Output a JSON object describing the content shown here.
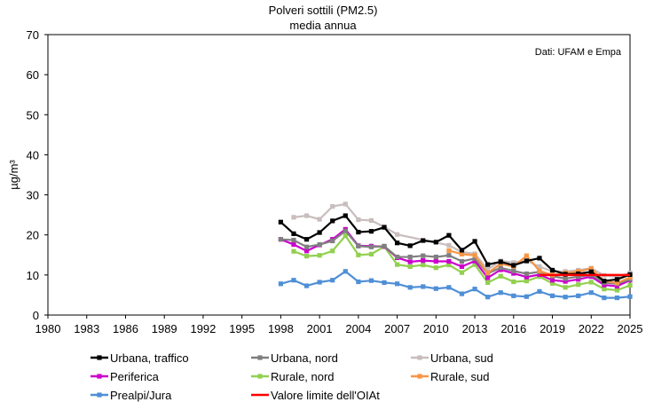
{
  "chart_data": {
    "type": "line",
    "title": "Polveri sottili (PM2.5)",
    "subtitle": "media annua",
    "note": "Dati: UFAM e Empa",
    "ylabel": "µg/m³",
    "xlabel": "",
    "ylim": [
      0,
      70
    ],
    "yticks": [
      0,
      10,
      20,
      30,
      40,
      50,
      60,
      70
    ],
    "xlim": [
      1980,
      2025
    ],
    "xticks": [
      1980,
      1983,
      1986,
      1989,
      1992,
      1995,
      1998,
      2001,
      2004,
      2007,
      2010,
      2013,
      2016,
      2019,
      2022,
      2025
    ],
    "grid": false,
    "legend_position": "bottom",
    "series": [
      {
        "name": "Urbana, traffico",
        "color": "#000000",
        "marker": true,
        "x": [
          1998,
          1999,
          2000,
          2001,
          2002,
          2003,
          2004,
          2005,
          2006,
          2007,
          2008,
          2009,
          2010,
          2011,
          2012,
          2013,
          2014,
          2015,
          2016,
          2017,
          2018,
          2019,
          2020,
          2021,
          2022,
          2023,
          2024,
          2025
        ],
        "y": [
          23.2,
          20.3,
          18.9,
          20.6,
          23.5,
          24.8,
          20.7,
          20.9,
          21.9,
          18.0,
          17.3,
          18.6,
          18.2,
          19.9,
          16.2,
          18.4,
          12.6,
          13.3,
          12.4,
          13.5,
          14.2,
          11.2,
          10.2,
          10.3,
          10.8,
          8.5,
          8.9,
          10.1
        ]
      },
      {
        "name": "Urbana, nord",
        "color": "#7f7f7f",
        "marker": true,
        "x": [
          1998,
          1999,
          2000,
          2001,
          2002,
          2003,
          2004,
          2005,
          2006,
          2007,
          2008,
          2009,
          2010,
          2011,
          2012,
          2013,
          2014,
          2015,
          2016,
          2017,
          2018,
          2019,
          2020,
          2021,
          2022,
          2023,
          2024,
          2025
        ],
        "y": [
          18.9,
          18.7,
          17.0,
          17.6,
          18.5,
          21.0,
          17.2,
          17.0,
          17.2,
          14.5,
          14.5,
          14.8,
          14.5,
          14.9,
          13.4,
          14.1,
          10.4,
          11.8,
          11.0,
          10.3,
          10.8,
          9.7,
          9.1,
          9.6,
          10.0,
          8.1,
          7.8,
          8.9
        ]
      },
      {
        "name": "Urbana, sud",
        "color": "#c9bdbd",
        "marker": true,
        "x": [
          1999,
          2000,
          2001,
          2002,
          2003,
          2004,
          2005,
          2006,
          2007,
          2011,
          2012,
          2013,
          2014,
          2015,
          2016,
          2017,
          2018,
          2019,
          2020,
          2021,
          2022,
          2023,
          2024,
          2025
        ],
        "y": [
          24.4,
          24.8,
          23.9,
          27.1,
          27.7,
          23.8,
          23.6,
          22.0,
          20.1,
          17.4,
          15.7,
          15.3,
          11.4,
          13.5,
          13.1,
          13.6,
          12.1,
          10.9,
          10.9,
          11.2,
          11.7,
          9.9,
          9.5,
          10.5
        ]
      },
      {
        "name": "Periferica",
        "color": "#cc00cc",
        "marker": true,
        "x": [
          1998,
          1999,
          2000,
          2001,
          2002,
          2003,
          2004,
          2005,
          2006,
          2007,
          2008,
          2009,
          2010,
          2011,
          2012,
          2013,
          2014,
          2015,
          2016,
          2017,
          2018,
          2019,
          2020,
          2021,
          2022,
          2023,
          2024,
          2025
        ],
        "y": [
          18.9,
          17.6,
          16.0,
          17.5,
          18.9,
          21.4,
          17.3,
          17.2,
          17.1,
          14.3,
          13.3,
          13.6,
          13.4,
          13.4,
          12.1,
          13.5,
          9.3,
          11.3,
          10.4,
          9.5,
          10.1,
          8.7,
          8.4,
          8.9,
          9.6,
          7.5,
          7.2,
          8.7
        ]
      },
      {
        "name": "Rurale, nord",
        "color": "#92d050",
        "marker": true,
        "x": [
          1999,
          2000,
          2001,
          2002,
          2003,
          2004,
          2005,
          2006,
          2007,
          2008,
          2009,
          2010,
          2011,
          2012,
          2013,
          2014,
          2015,
          2016,
          2017,
          2018,
          2019,
          2020,
          2021,
          2022,
          2023,
          2024,
          2025
        ],
        "y": [
          15.9,
          14.7,
          14.9,
          16.0,
          19.8,
          15.0,
          15.2,
          17.1,
          12.6,
          12.1,
          12.5,
          11.8,
          12.5,
          10.6,
          12.6,
          8.1,
          9.7,
          8.3,
          8.5,
          9.6,
          7.9,
          6.9,
          7.6,
          8.2,
          6.5,
          6.2,
          7.4
        ]
      },
      {
        "name": "Rurale, sud",
        "color": "#f79646",
        "marker": true,
        "x": [
          2011,
          2012,
          2013,
          2014,
          2015,
          2016,
          2017,
          2018,
          2019,
          2020,
          2021,
          2022,
          2023,
          2024,
          2025
        ],
        "y": [
          16.1,
          15.2,
          14.9,
          10.5,
          12.8,
          12.1,
          14.8,
          11.0,
          10.0,
          10.5,
          10.9,
          11.6,
          8.5,
          8.0,
          9.4
        ]
      },
      {
        "name": "Prealpi/Jura",
        "color": "#4f8fd6",
        "marker": true,
        "x": [
          1998,
          1999,
          2000,
          2001,
          2002,
          2003,
          2004,
          2005,
          2006,
          2007,
          2008,
          2009,
          2010,
          2011,
          2012,
          2013,
          2014,
          2015,
          2016,
          2017,
          2018,
          2019,
          2020,
          2021,
          2022,
          2023,
          2024,
          2025
        ],
        "y": [
          7.8,
          8.7,
          7.3,
          8.2,
          8.7,
          10.9,
          8.3,
          8.6,
          8.1,
          7.8,
          6.9,
          7.1,
          6.6,
          6.9,
          5.3,
          6.5,
          4.5,
          5.6,
          4.8,
          4.6,
          5.9,
          4.8,
          4.5,
          4.8,
          5.6,
          4.3,
          4.3,
          4.6
        ]
      },
      {
        "name": "Valore limite dell'OIAt",
        "color": "#ff0000",
        "marker": false,
        "x": [
          2018,
          2025
        ],
        "y": [
          10,
          10
        ]
      }
    ]
  }
}
